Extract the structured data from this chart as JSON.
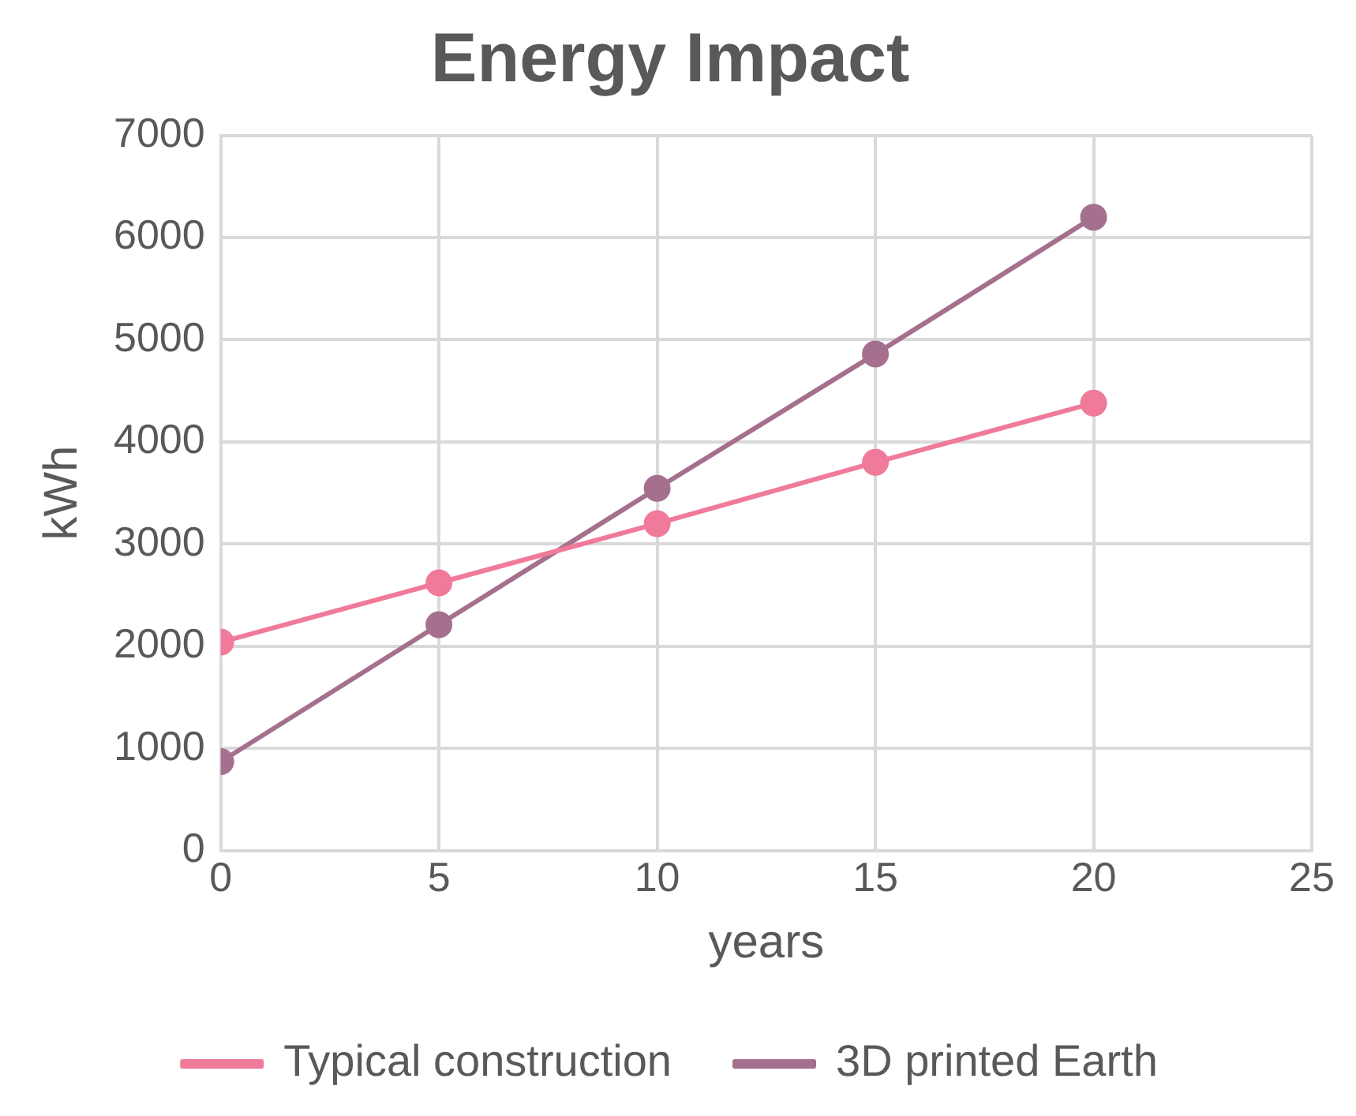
{
  "chart_data": {
    "type": "line",
    "title": "Energy Impact",
    "xlabel": "years",
    "ylabel": "kWh",
    "x": [
      0,
      5,
      10,
      15,
      20
    ],
    "series": [
      {
        "name": "Typical construction",
        "color": "#f07a9a",
        "values": [
          2040,
          2620,
          3200,
          3800,
          4380
        ]
      },
      {
        "name": "3D printed Earth",
        "color": "#a5708e",
        "values": [
          870,
          2210,
          3545,
          4860,
          6200
        ]
      }
    ],
    "xlim": [
      0,
      25
    ],
    "xticks": [
      0,
      5,
      10,
      15,
      20,
      25
    ],
    "ylim": [
      0,
      7000
    ],
    "yticks": [
      0,
      1000,
      2000,
      3000,
      4000,
      5000,
      6000,
      7000
    ],
    "grid": true,
    "legend": "bottom",
    "marker": "circle",
    "line_style": "solid"
  }
}
